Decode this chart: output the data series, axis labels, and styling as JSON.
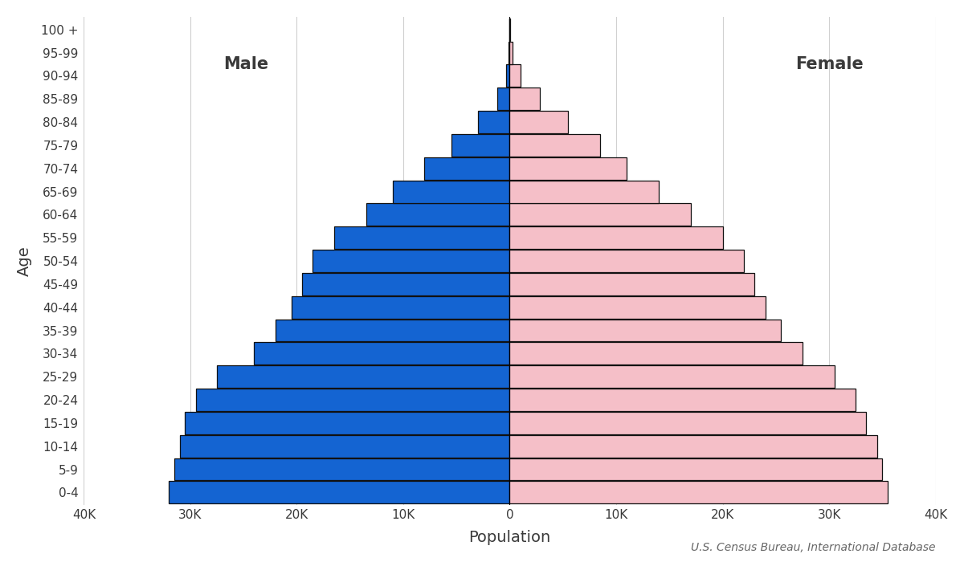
{
  "age_groups": [
    "0-4",
    "5-9",
    "10-14",
    "15-19",
    "20-24",
    "25-29",
    "30-34",
    "35-39",
    "40-44",
    "45-49",
    "50-54",
    "55-59",
    "60-64",
    "65-69",
    "70-74",
    "75-79",
    "80-84",
    "85-89",
    "90-94",
    "95-99",
    "100 +"
  ],
  "male": [
    32000,
    31500,
    31000,
    30500,
    29500,
    27500,
    24000,
    22000,
    20500,
    19500,
    18500,
    16500,
    13500,
    11000,
    8000,
    5500,
    3000,
    1200,
    350,
    80,
    10
  ],
  "female": [
    35500,
    35000,
    34500,
    33500,
    32500,
    30500,
    27500,
    25500,
    24000,
    23000,
    22000,
    20000,
    17000,
    14000,
    11000,
    8500,
    5500,
    2800,
    1000,
    280,
    55
  ],
  "male_color": "#1464d2",
  "female_color": "#f5bfc8",
  "bar_edgecolor": "#111111",
  "bar_linewidth": 0.9,
  "xlabel": "Population",
  "ylabel": "Age",
  "xlim": 40000,
  "xtick_step": 10000,
  "male_label": "Male",
  "female_label": "Female",
  "source_text": "U.S. Census Bureau, International Database",
  "bg_color": "#ffffff",
  "grid_color": "#d0d0d0",
  "font_color": "#3a3a3a",
  "label_fontsize": 14,
  "tick_fontsize": 11,
  "source_fontsize": 10
}
